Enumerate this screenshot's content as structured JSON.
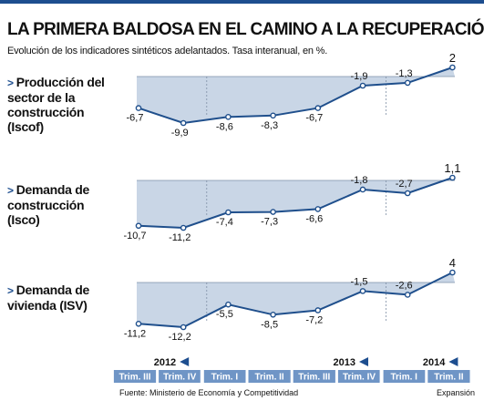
{
  "title": "LA PRIMERA BALDOSA EN EL CAMINO A LA RECUPERACIÓN",
  "subtitle": "Evolución de los indicadores sintéticos adelantados. Tasa interanual, en %.",
  "source": "Fuente: Ministerio de Economía y Competitividad",
  "brand": "Expansión",
  "colors": {
    "accent": "#1d4e8f",
    "fill": "#c9d6e6",
    "line": "#1f4f8c",
    "axis_band": "#6f95c6"
  },
  "chart_data": {
    "type": "line",
    "x": [
      "Trim. III",
      "Trim. IV",
      "Trim. I",
      "Trim. II",
      "Trim. III",
      "Trim. IV",
      "Trim. I",
      "Trim. II"
    ],
    "years": [
      {
        "label": "2012",
        "start_index": 0
      },
      {
        "label": "2013",
        "start_index": 2
      },
      {
        "label": "2014",
        "start_index": 6
      }
    ],
    "series": [
      {
        "name": "Producción del\nsector de la\nconstrucción\n(Iscof)",
        "values": [
          -6.7,
          -9.9,
          -8.6,
          -8.3,
          -6.7,
          -1.9,
          -1.3,
          2
        ],
        "labels": [
          "-6,7",
          "-9,9",
          "-8,6",
          "-8,3",
          "-6,7",
          "-1,9",
          "-1,3",
          "2"
        ]
      },
      {
        "name": "Demanda de\nconstrucción\n(Isco)",
        "values": [
          -10.7,
          -11.2,
          -7.4,
          -7.3,
          -6.6,
          -1.8,
          -2.7,
          1.1
        ],
        "labels": [
          "-10,7",
          "-11,2",
          "-7,4",
          "-7,3",
          "-6,6",
          "-1,8",
          "-2,7",
          "1,1"
        ]
      },
      {
        "name": "Demanda de\nvivienda (ISV)",
        "values": [
          -11.2,
          -12.2,
          -5.5,
          -8.5,
          -7.2,
          -1.5,
          -2.6,
          4
        ],
        "labels": [
          "-11,2",
          "-12,2",
          "-5,5",
          "-8,5",
          "-7,2",
          "-1,5",
          "-2,6",
          "4"
        ]
      }
    ],
    "grid": false,
    "legend": "none"
  }
}
